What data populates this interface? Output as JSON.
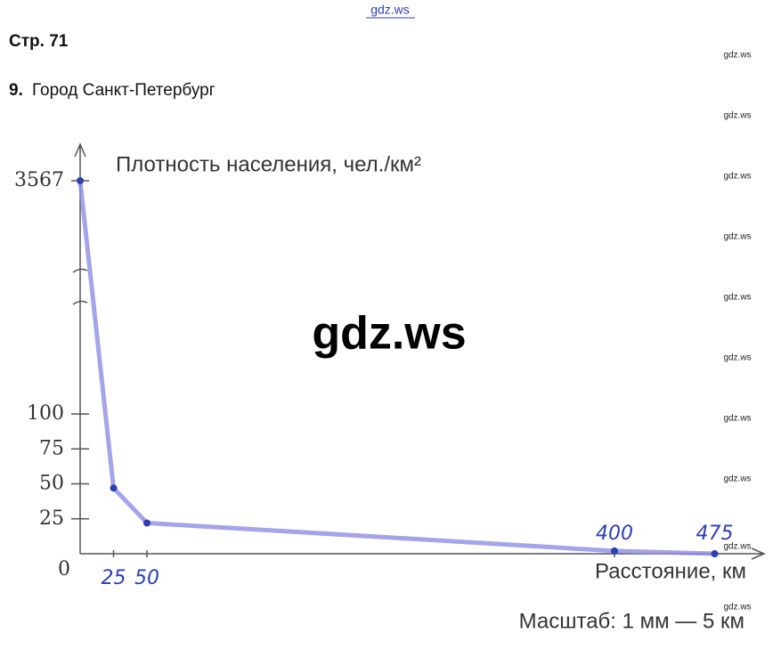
{
  "header": {
    "site": "gdz.ws",
    "page": "Стр. 71",
    "task_number": "9.",
    "task_title": "Город Санкт-Петербург"
  },
  "watermark": "gdz.ws",
  "chart_data": {
    "type": "line",
    "y_label": "Плотность населения, чел./км²",
    "x_label": "Расстояние, км",
    "scale_note": "Масштаб: 1 мм — 5 км",
    "axis_break": true,
    "x": [
      0,
      25,
      50,
      400,
      475
    ],
    "series": [
      {
        "color": "#8d8de6",
        "values": [
          3567,
          47,
          22,
          2,
          0
        ]
      }
    ],
    "xlim": [
      0,
      500
    ],
    "xticks": [
      25,
      50,
      400,
      475
    ],
    "ylim": [
      0,
      3567
    ],
    "yticks": [
      0,
      25,
      50,
      75,
      100,
      3567
    ]
  }
}
